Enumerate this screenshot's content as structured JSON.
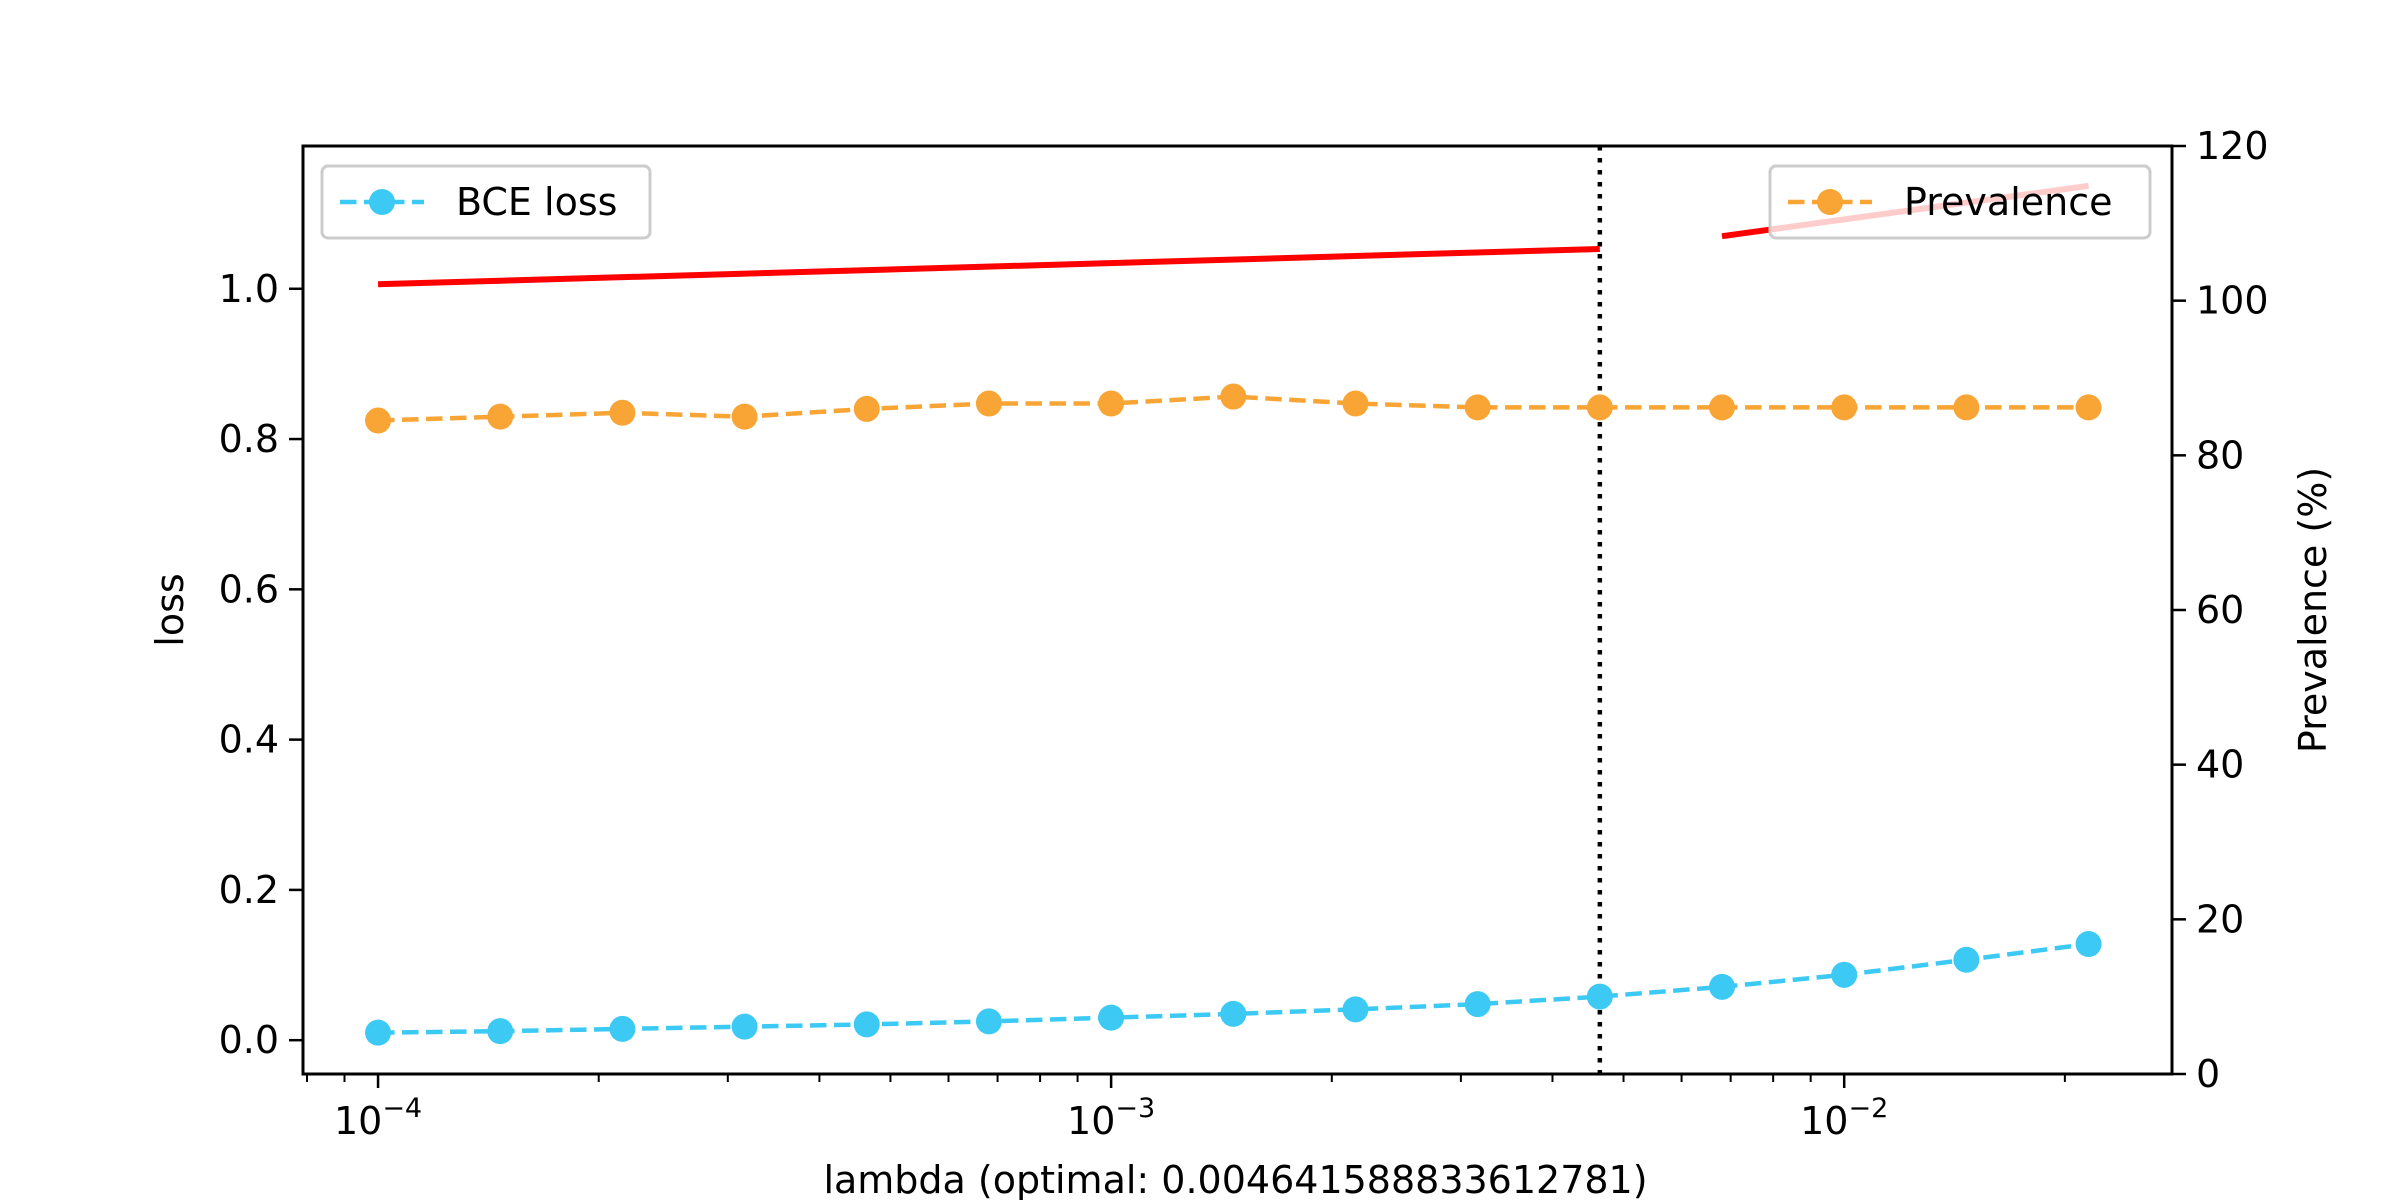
{
  "chart_data": {
    "type": "line",
    "title": "",
    "xlabel": "lambda (optimal: 0.004641588833612781)",
    "xscale": "log",
    "xlim": [
      7.9e-05,
      0.028
    ],
    "x_ticks": [
      {
        "value": 0.0001,
        "label_base": "10",
        "label_exp": "−4"
      },
      {
        "value": 0.001,
        "label_base": "10",
        "label_exp": "−3"
      },
      {
        "value": 0.01,
        "label_base": "10",
        "label_exp": "−2"
      }
    ],
    "optimal_lambda": 0.004641588833612781,
    "y_left": {
      "label": "loss",
      "lim": [
        -0.045,
        1.19
      ],
      "ticks": [
        "0.0",
        "0.2",
        "0.4",
        "0.6",
        "0.8",
        "1.0"
      ]
    },
    "y_right": {
      "label": "Prevalence (%)",
      "lim": [
        0,
        120
      ],
      "ticks": [
        "0",
        "20",
        "40",
        "60",
        "80",
        "100",
        "120"
      ]
    },
    "x": [
      0.0001,
      0.0001467799,
      0.0002154435,
      0.0003162278,
      0.0004641589,
      0.0006812921,
      0.001,
      0.0014677993,
      0.0021544347,
      0.0031622777,
      0.0046415888,
      0.0068129207,
      0.01,
      0.0146779927,
      0.0215443469
    ],
    "series": [
      {
        "name": "BCE loss",
        "axis": "left",
        "color": "#3ccaf5",
        "style": "dashed-markers",
        "values": [
          0.01,
          0.012,
          0.015,
          0.018,
          0.021,
          0.025,
          0.03,
          0.035,
          0.041,
          0.048,
          0.058,
          0.071,
          0.087,
          0.107,
          0.128
        ]
      },
      {
        "name": "Prevalence",
        "axis": "right",
        "color": "#f8a535",
        "style": "dashed-markers",
        "values": [
          84.5,
          85.0,
          85.5,
          85.0,
          86.0,
          86.7,
          86.7,
          87.6,
          86.7,
          86.2,
          86.2,
          86.2,
          86.2,
          86.2,
          86.2
        ]
      },
      {
        "axis": "left",
        "color": "#ff0000",
        "style": "solid",
        "segments": [
          {
            "x": [
              0.0001,
              0.0046415888
            ],
            "y": [
              1.006,
              1.053
            ]
          },
          {
            "x": [
              0.0068129207,
              0.0215443469
            ],
            "y": [
              1.07,
              1.137
            ]
          }
        ]
      }
    ],
    "legends": [
      {
        "series": "BCE loss",
        "position": "top-left"
      },
      {
        "series": "Prevalence",
        "position": "top-right"
      }
    ],
    "grid": false
  }
}
